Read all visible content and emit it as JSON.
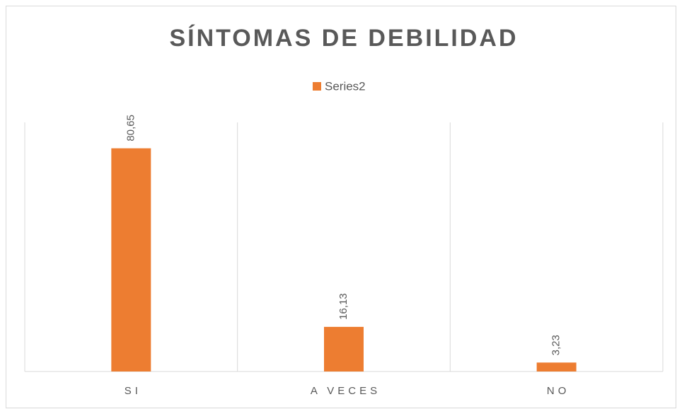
{
  "chart_data": {
    "type": "bar",
    "title": "SÍNTOMAS DE DEBILIDAD",
    "categories": [
      "SI",
      "A VECES",
      "NO"
    ],
    "series": [
      {
        "name": "Series2",
        "color": "#ed7d31",
        "values": [
          80.65,
          16.13,
          3.23
        ],
        "value_labels": [
          "80,65",
          "16,13",
          "3,23"
        ]
      }
    ],
    "ylim": [
      0,
      90
    ],
    "legend": "top"
  }
}
